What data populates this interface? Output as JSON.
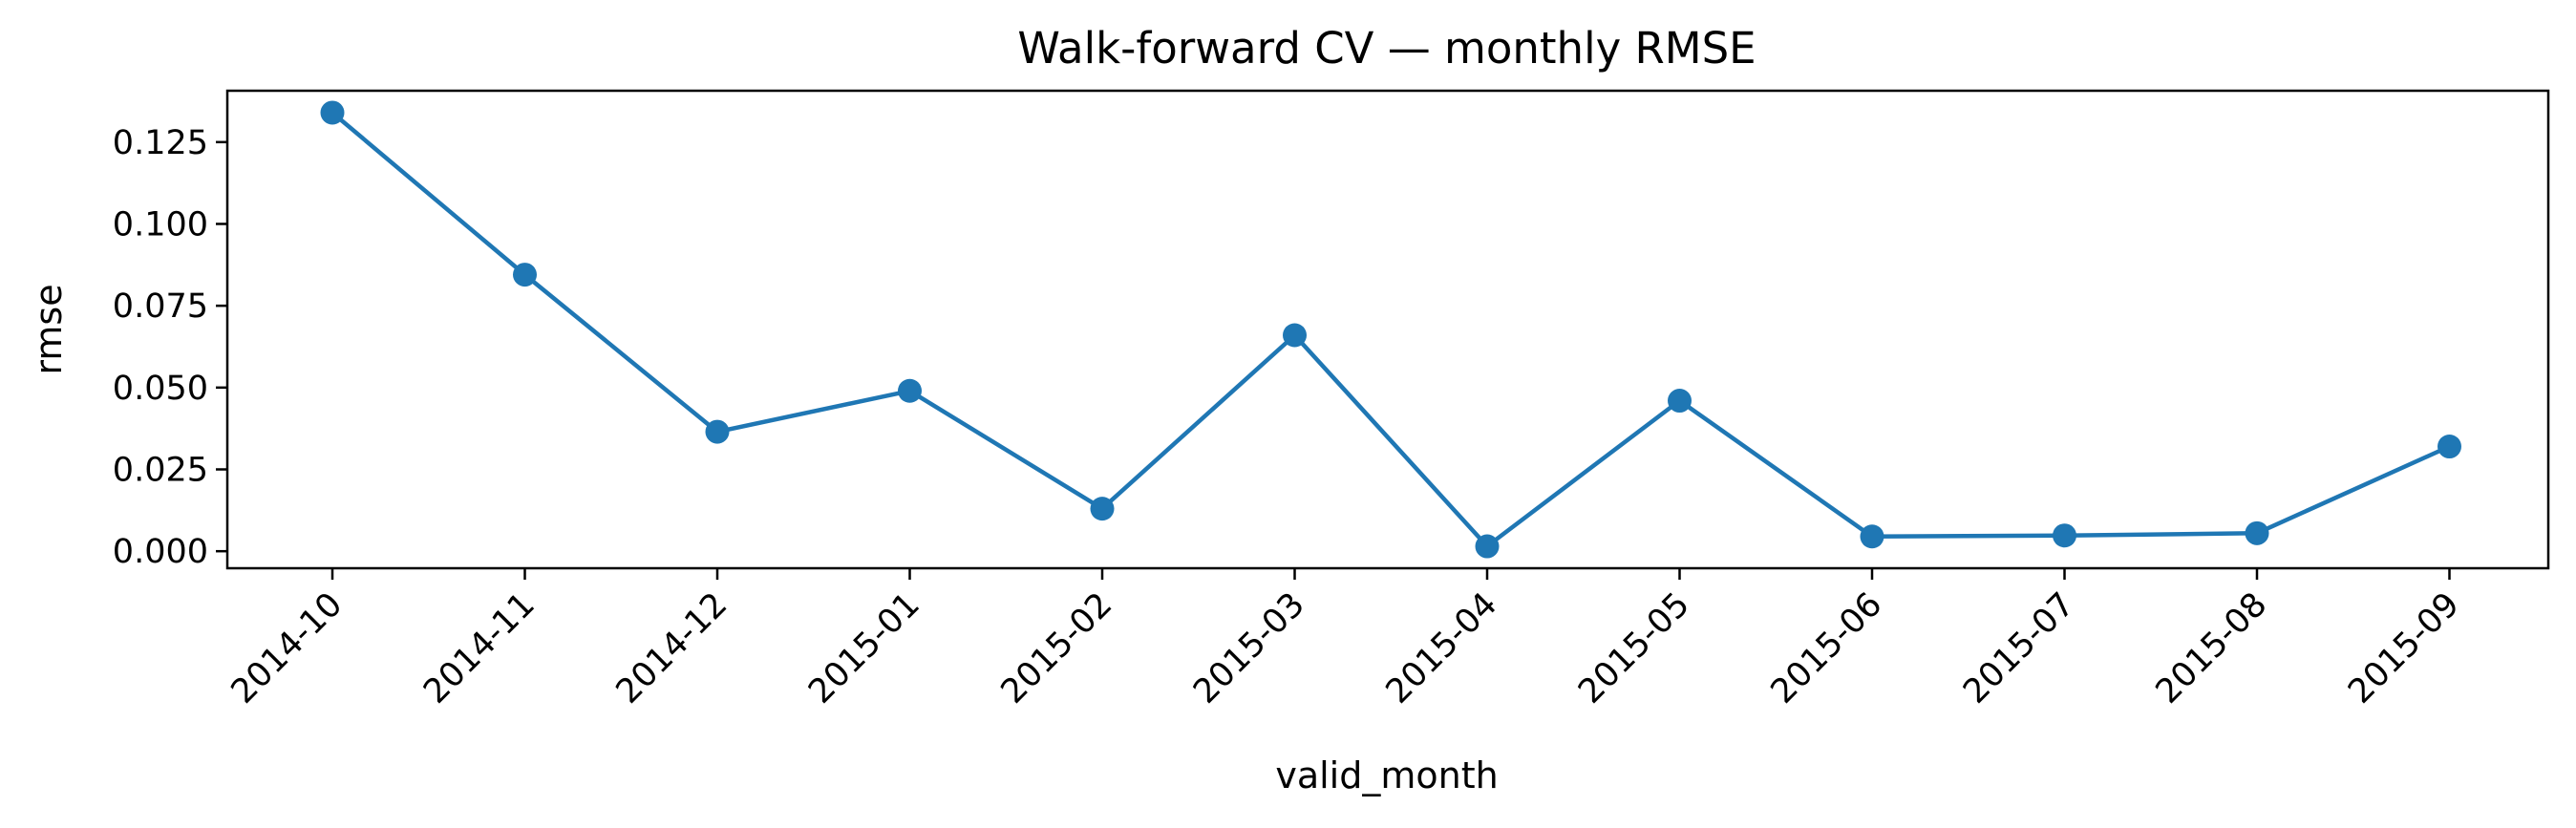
{
  "chart_data": {
    "type": "line",
    "title": "Walk-forward CV — monthly RMSE",
    "xlabel": "valid_month",
    "ylabel": "rmse",
    "categories": [
      "2014-10",
      "2014-11",
      "2014-12",
      "2015-01",
      "2015-02",
      "2015-03",
      "2015-04",
      "2015-05",
      "2015-06",
      "2015-07",
      "2015-08",
      "2015-09"
    ],
    "series": [
      {
        "values": [
          0.134,
          0.0845,
          0.0365,
          0.049,
          0.013,
          0.066,
          0.0015,
          0.046,
          0.0045,
          0.0048,
          0.0055,
          0.032
        ],
        "color": "#1f77b4"
      }
    ],
    "yticks": [
      "0.000",
      "0.025",
      "0.050",
      "0.075",
      "0.100",
      "0.125"
    ],
    "ylim": [
      -0.0052,
      0.1407
    ],
    "grid": false,
    "legend": "none"
  }
}
